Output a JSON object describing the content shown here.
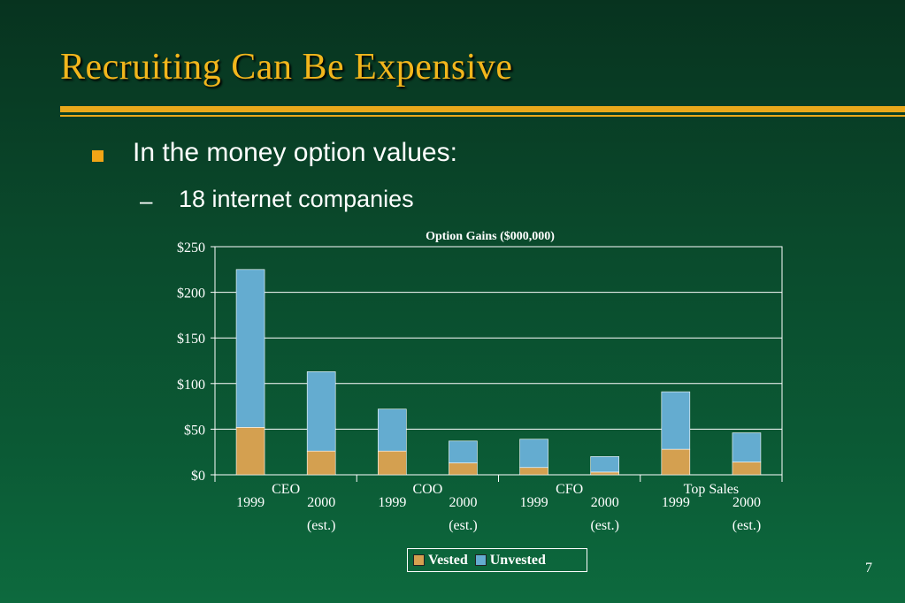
{
  "slide": {
    "title": "Recruiting Can Be Expensive",
    "bullet1": "In the money option values:",
    "bullet2_dash": "–",
    "bullet2": "18 internet companies",
    "page_number": "7"
  },
  "colors": {
    "title": "#f2b61c",
    "rule": "#e9a81b",
    "bullet": "#f2a516",
    "vested": "#d4a050",
    "unvested": "#64acd0"
  },
  "chart_data": {
    "type": "bar",
    "stacked": true,
    "title": "Option Gains ($000,000)",
    "ylim": [
      0,
      250
    ],
    "yticks": [
      "$0",
      "$50",
      "$100",
      "$150",
      "$200",
      "$250"
    ],
    "ytick_values": [
      0,
      50,
      100,
      150,
      200,
      250
    ],
    "groups": [
      "CEO",
      "COO",
      "CFO",
      "Top Sales"
    ],
    "bar_labels": [
      [
        "1999",
        ""
      ],
      [
        "2000",
        "(est.)"
      ],
      [
        "1999",
        ""
      ],
      [
        "2000",
        "(est.)"
      ],
      [
        "1999",
        ""
      ],
      [
        "2000",
        "(est.)"
      ],
      [
        "1999",
        ""
      ],
      [
        "2000",
        "(est.)"
      ]
    ],
    "series": [
      {
        "name": "Vested",
        "values": [
          52,
          26,
          26,
          13,
          8,
          3,
          28,
          14
        ]
      },
      {
        "name": "Unvested",
        "values": [
          173,
          87,
          46,
          24,
          31,
          17,
          63,
          32
        ]
      }
    ],
    "grid": true,
    "legend_position": "bottom"
  }
}
